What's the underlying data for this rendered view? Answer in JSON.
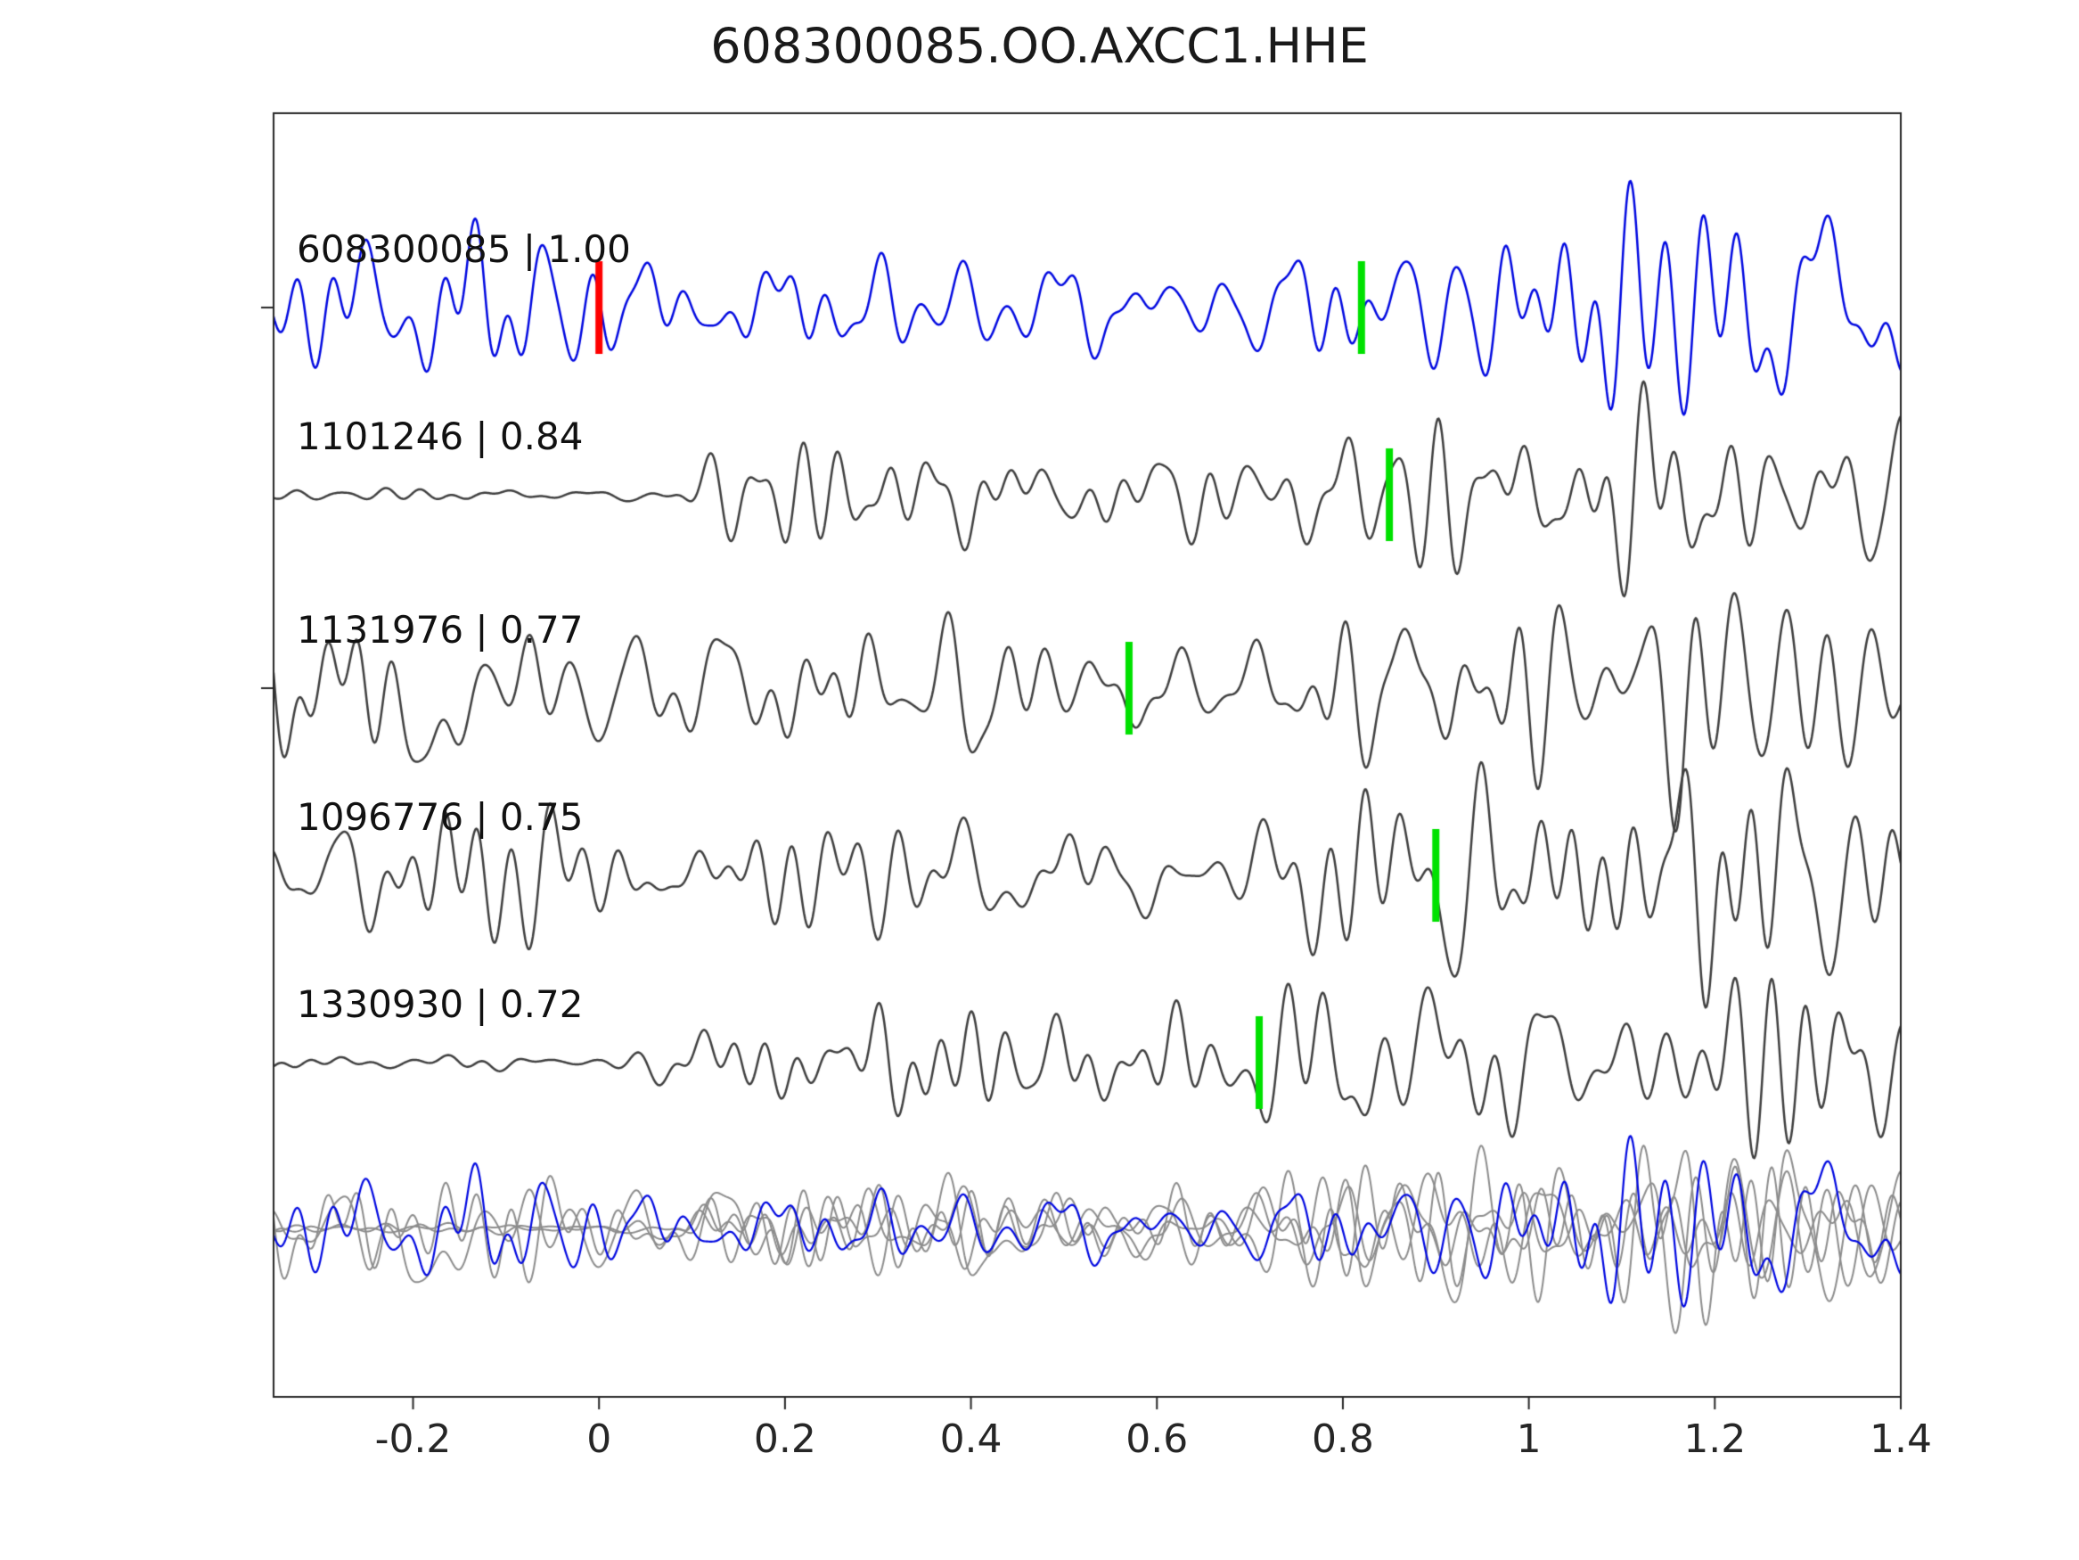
{
  "title": "608300085.OO.AXCC1.HHE",
  "chart_data": {
    "type": "line",
    "title": "608300085.OO.AXCC1.HHE",
    "description": "Template matching / cross-correlation detection plot: template waveform (blue) above four detected event waveforms (dark gray), with an overlay of all aligned traces at the bottom. Red bar = template reference time at 0, green bars = pick/detection times.",
    "xlabel": "",
    "ylabel": "",
    "xlim": [
      -0.35,
      1.4
    ],
    "x_ticks": [
      -0.2,
      0,
      0.2,
      0.4,
      0.6,
      0.8,
      1,
      1.2,
      1.4
    ],
    "x_tick_labels": [
      "-0.2",
      "0",
      "0.2",
      "0.4",
      "0.6",
      "0.8",
      "1",
      "1.2",
      "1.4"
    ],
    "grid": false,
    "legend": "none",
    "colors": {
      "template_trace": "#0008e0",
      "detection_trace": "#3f3f3f",
      "overlay_gray": "#8c8c8c",
      "pick_marker": "#00e100",
      "template_marker": "#ff0000",
      "axis": "#262626"
    },
    "traces": [
      {
        "id": "608300085",
        "correlation": "1.00",
        "label": "608300085 | 1.00",
        "color_key": "template_trace",
        "pick_x": 0.82,
        "red_marker_x": 0,
        "seed": 101,
        "quiet_start": false,
        "base_amp": 0.62,
        "arrival_x": 0.86,
        "arrival_amp": 0.33,
        "spikes": []
      },
      {
        "id": "1101246",
        "correlation": "0.84",
        "label": "1101246 | 0.84",
        "color_key": "detection_trace",
        "pick_x": 0.85,
        "red_marker_x": null,
        "seed": 202,
        "quiet_start": true,
        "base_amp": 0.5,
        "arrival_x": 0.87,
        "arrival_amp": 0.55,
        "spikes": []
      },
      {
        "id": "1131976",
        "correlation": "0.77",
        "label": "1131976 | 0.77",
        "color_key": "detection_trace",
        "pick_x": 0.57,
        "red_marker_x": null,
        "seed": 303,
        "quiet_start": false,
        "base_amp": 0.6,
        "arrival_x": 0.95,
        "arrival_amp": 0.3,
        "spikes": [
          {
            "x": -0.185,
            "amp": -2.1,
            "w": 0.018
          }
        ]
      },
      {
        "id": "1096776",
        "correlation": "0.75",
        "label": "1096776 | 0.75",
        "color_key": "detection_trace",
        "pick_x": 0.9,
        "red_marker_x": null,
        "seed": 404,
        "quiet_start": false,
        "base_amp": 0.62,
        "arrival_x": 0.9,
        "arrival_amp": 0.4,
        "spikes": []
      },
      {
        "id": "1330930",
        "correlation": "0.72",
        "label": "1330930 | 0.72",
        "color_key": "detection_trace",
        "pick_x": 0.71,
        "red_marker_x": null,
        "seed": 505,
        "quiet_start": true,
        "base_amp": 0.5,
        "arrival_x": 0.88,
        "arrival_amp": 0.5,
        "spikes": []
      }
    ],
    "overlay": {
      "present": true,
      "note": "All five traces superimposed at bottom; detections in light gray, template in blue on top."
    }
  }
}
